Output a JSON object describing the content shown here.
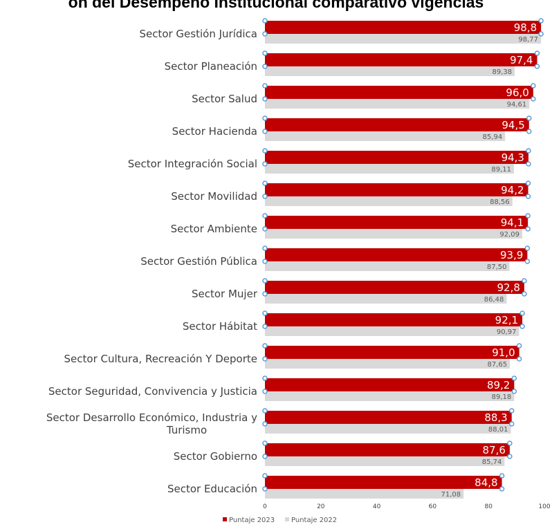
{
  "chart_data": {
    "type": "bar",
    "orientation": "horizontal",
    "title": "ón del Desempeño Institucional comparativo vigencias",
    "categories": [
      "Sector Gestión Jurídica",
      "Sector Planeación",
      "Sector Salud",
      "Sector Hacienda",
      "Sector Integración Social",
      "Sector Movilidad",
      "Sector Ambiente",
      "Sector Gestión Pública",
      "Sector Mujer",
      "Sector Hábitat",
      "Sector Cultura, Recreación Y Deporte",
      "Sector Seguridad, Convivencia y Justicia",
      "Sector Desarrollo Económico, Industria y Turismo",
      "Sector Gobierno",
      "Sector Educación"
    ],
    "series": [
      {
        "name": "Puntaje 2023",
        "color": "#c00000",
        "values": [
          98.8,
          97.4,
          96.0,
          94.5,
          94.3,
          94.2,
          94.1,
          93.9,
          92.8,
          92.1,
          91.0,
          89.2,
          88.3,
          87.6,
          84.8
        ],
        "labels": [
          "98,8",
          "97,4",
          "96,0",
          "94,5",
          "94,3",
          "94,2",
          "94,1",
          "93,9",
          "92,8",
          "92,1",
          "91,0",
          "89,2",
          "88,3",
          "87,6",
          "84,8"
        ]
      },
      {
        "name": "Puntaje 2022",
        "color": "#d9d9d9",
        "values": [
          98.77,
          89.38,
          94.61,
          85.94,
          89.11,
          88.56,
          92.09,
          87.5,
          86.48,
          90.97,
          87.65,
          89.18,
          88.01,
          85.74,
          71.08
        ],
        "labels": [
          "98,77",
          "89,38",
          "94,61",
          "85,94",
          "89,11",
          "88,56",
          "92,09",
          "87,50",
          "86,48",
          "90,97",
          "87,65",
          "89,18",
          "88,01",
          "85,74",
          "71,08"
        ]
      }
    ],
    "xlim": [
      0,
      100
    ],
    "xticks": [
      "0",
      "20",
      "40",
      "60",
      "80",
      "100"
    ],
    "grid": false,
    "legend_position": "bottom-left"
  }
}
